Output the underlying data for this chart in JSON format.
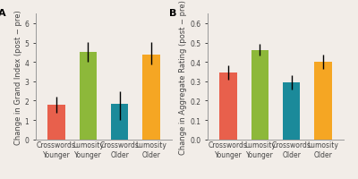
{
  "panel_A": {
    "title": "A",
    "ylabel": "Change in Grand Index (post − pre)",
    "categories": [
      "Crosswords\nYounger",
      "Lumosity\nYounger",
      "Crosswords\nOlder",
      "Lumosity\nOlder"
    ],
    "values": [
      1.78,
      4.52,
      1.83,
      4.37
    ],
    "errors_upper": [
      0.42,
      0.52,
      0.65,
      0.65
    ],
    "errors_lower": [
      0.42,
      0.52,
      0.83,
      0.52
    ],
    "colors": [
      "#E8604C",
      "#8DB83A",
      "#1B8A9A",
      "#F5A623"
    ],
    "ylim": [
      0,
      6.5
    ],
    "yticks": [
      0,
      1,
      2,
      3,
      4,
      5,
      6
    ]
  },
  "panel_B": {
    "title": "B",
    "ylabel": "Change in Aggregate Rating (post − pre)",
    "categories": [
      "Crosswords\nYounger",
      "Lumosity\nYounger",
      "Crosswords\nOlder",
      "Lumosity\nOlder"
    ],
    "values": [
      0.345,
      0.463,
      0.293,
      0.4
    ],
    "errors_upper": [
      0.037,
      0.028,
      0.037,
      0.037
    ],
    "errors_lower": [
      0.037,
      0.028,
      0.037,
      0.037
    ],
    "colors": [
      "#E8604C",
      "#8DB83A",
      "#1B8A9A",
      "#F5A623"
    ],
    "ylim": [
      0,
      0.65
    ],
    "yticks": [
      0.0,
      0.1,
      0.2,
      0.3,
      0.4,
      0.5,
      0.6
    ]
  },
  "background_color": "#F2EDE8",
  "bar_width": 0.55,
  "tick_fontsize": 5.5,
  "label_fontsize": 6.0,
  "title_fontsize": 8
}
